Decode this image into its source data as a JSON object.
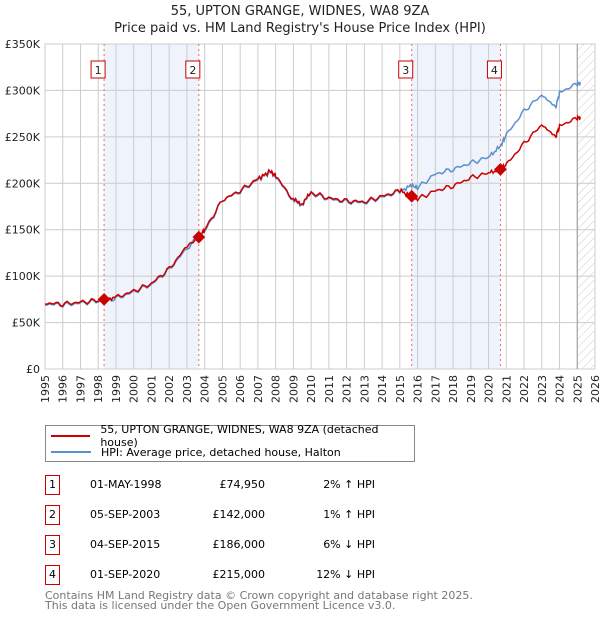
{
  "title": "55, UPTON GRANGE, WIDNES, WA8 9ZA",
  "subtitle": "Price paid vs. HM Land Registry's House Price Index (HPI)",
  "chart_data": {
    "type": "line",
    "xlim": [
      1995,
      2026
    ],
    "ylim": [
      0,
      350000
    ],
    "x_ticks": [
      "1995",
      "1996",
      "1997",
      "1998",
      "1999",
      "2000",
      "2001",
      "2002",
      "2003",
      "2004",
      "2005",
      "2006",
      "2007",
      "2008",
      "2009",
      "2010",
      "2011",
      "2012",
      "2013",
      "2014",
      "2015",
      "2016",
      "2017",
      "2018",
      "2019",
      "2020",
      "2021",
      "2022",
      "2023",
      "2024",
      "2025",
      "2026"
    ],
    "y_ticks": [
      {
        "v": 0,
        "label": "£0"
      },
      {
        "v": 50000,
        "label": "£50K"
      },
      {
        "v": 100000,
        "label": "£100K"
      },
      {
        "v": 150000,
        "label": "£150K"
      },
      {
        "v": 200000,
        "label": "£200K"
      },
      {
        "v": 250000,
        "label": "£250K"
      },
      {
        "v": 300000,
        "label": "£300K"
      },
      {
        "v": 350000,
        "label": "£350K"
      }
    ],
    "shaded_ranges": [
      [
        1998.33,
        2003.67
      ],
      [
        2015.67,
        2020.67
      ]
    ],
    "hatched_from": 2025.0,
    "series": [
      {
        "name": "55, UPTON GRANGE, WIDNES, WA8 9ZA (detached house)",
        "color": "#cc0000",
        "x": [
          1995,
          1996,
          1997,
          1998,
          1998.33,
          1999,
          2000,
          2001,
          2002,
          2003,
          2003.67,
          2004,
          2005,
          2006,
          2007,
          2007.7,
          2008,
          2009,
          2009.5,
          2010,
          2011,
          2012,
          2013,
          2014,
          2015,
          2015.67,
          2016,
          2017,
          2018,
          2019,
          2020,
          2020.67,
          2021,
          2022,
          2023,
          2023.8,
          2024,
          2025,
          2025.2
        ],
        "y": [
          71000,
          70000,
          72000,
          74000,
          74950,
          77000,
          84000,
          92000,
          108000,
          132000,
          142000,
          150000,
          182000,
          192000,
          205000,
          213000,
          208000,
          182000,
          178000,
          190000,
          184000,
          181000,
          180000,
          186000,
          192000,
          186000,
          183000,
          192000,
          197000,
          206000,
          211000,
          215000,
          220000,
          243000,
          263000,
          250000,
          262000,
          270000,
          271000
        ]
      },
      {
        "name": "HPI: Average price, detached house, Halton",
        "color": "#5b8fd0",
        "x": [
          1995,
          1996,
          1997,
          1998,
          1999,
          2000,
          2001,
          2002,
          2003,
          2004,
          2005,
          2006,
          2007,
          2007.7,
          2008,
          2009,
          2009.5,
          2010,
          2011,
          2012,
          2013,
          2014,
          2015,
          2015.67,
          2016,
          2017,
          2018,
          2019,
          2020,
          2020.67,
          2021,
          2022,
          2023,
          2023.8,
          2024,
          2025,
          2025.2
        ],
        "y": [
          70000,
          69000,
          71000,
          73000,
          76000,
          83000,
          91000,
          107000,
          130000,
          148000,
          182000,
          191000,
          204000,
          212000,
          207000,
          181000,
          177000,
          189000,
          183000,
          180000,
          179000,
          185000,
          191000,
          198000,
          195000,
          210000,
          215000,
          222000,
          228000,
          240000,
          252000,
          278000,
          295000,
          282000,
          298000,
          307000,
          308000
        ]
      }
    ],
    "sales": [
      {
        "n": "1",
        "x": 1998.33,
        "y": 74950,
        "date": "01-MAY-1998",
        "price": "£74,950",
        "hpi": "2% ↑ HPI"
      },
      {
        "n": "2",
        "x": 2003.67,
        "y": 142000,
        "date": "05-SEP-2003",
        "price": "£142,000",
        "hpi": "1% ↑ HPI"
      },
      {
        "n": "3",
        "x": 2015.67,
        "y": 186000,
        "date": "04-SEP-2015",
        "price": "£186,000",
        "hpi": "6% ↓ HPI"
      },
      {
        "n": "4",
        "x": 2020.67,
        "y": 215000,
        "date": "01-SEP-2020",
        "price": "£215,000",
        "hpi": "12% ↓ HPI"
      }
    ]
  },
  "footer1": "Contains HM Land Registry data © Crown copyright and database right 2025.",
  "footer2": "This data is licensed under the Open Government Licence v3.0."
}
